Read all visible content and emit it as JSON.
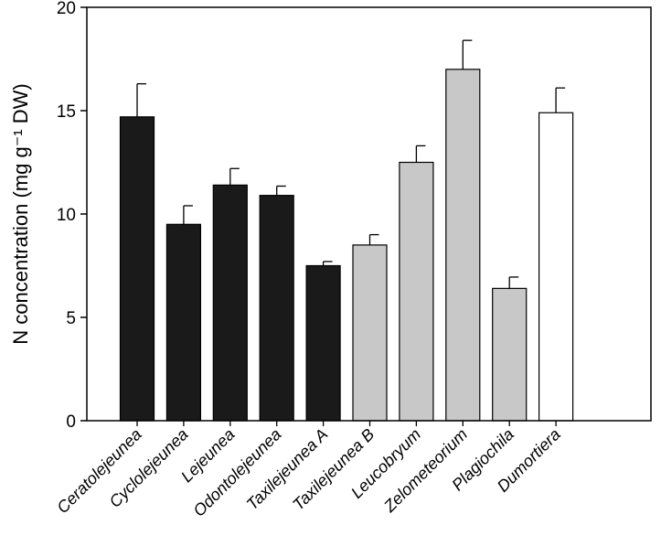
{
  "chart_data": {
    "type": "bar",
    "categories": [
      "Ceratolejeunea",
      "Cyclolejeunea",
      "Lejeunea",
      "Odontolejeunea",
      "Taxilejeunea A",
      "Taxilejeunea B",
      "Leucobryum",
      "Zelometeorium",
      "Plagiochila",
      "Dumortiera"
    ],
    "values": [
      14.7,
      9.5,
      11.4,
      10.9,
      7.5,
      8.5,
      12.5,
      17.0,
      6.4,
      14.9
    ],
    "errors": [
      1.6,
      0.9,
      0.8,
      0.45,
      0.2,
      0.5,
      0.8,
      1.4,
      0.55,
      1.2
    ],
    "bar_colors": [
      "#1a1a1a",
      "#1a1a1a",
      "#1a1a1a",
      "#1a1a1a",
      "#1a1a1a",
      "#c8c8c8",
      "#c8c8c8",
      "#c8c8c8",
      "#c8c8c8",
      "#ffffff"
    ],
    "ylabel": "N concentration (mg g⁻¹ DW)",
    "ylim": [
      0,
      20
    ],
    "yticks": [
      "0",
      "5",
      "10",
      "15",
      "20"
    ],
    "grid": false
  }
}
